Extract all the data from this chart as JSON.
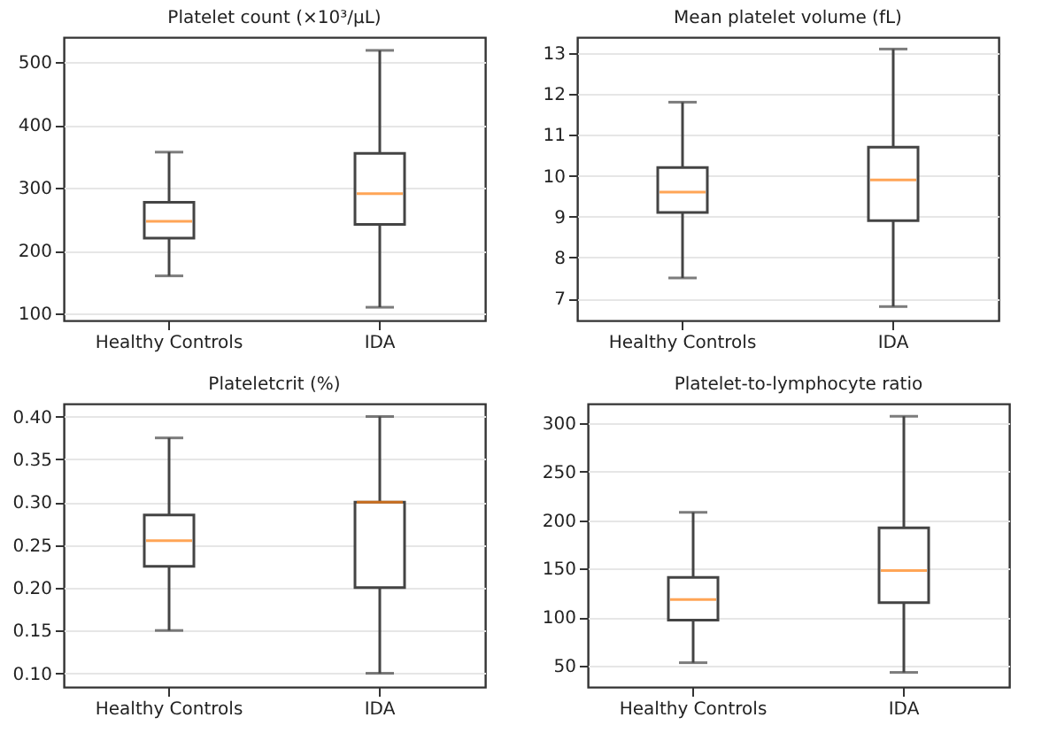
{
  "chart_data": [
    {
      "type": "box",
      "title": "Platelet count (×10³/μL)",
      "categories": [
        "Healthy Controls",
        "IDA"
      ],
      "ylim": [
        89,
        540
      ],
      "yticks": [
        100,
        200,
        300,
        400,
        500
      ],
      "grid": "y",
      "boxes": [
        {
          "low": 160,
          "q1": 220,
          "median": 247,
          "q3": 277,
          "high": 357
        },
        {
          "low": 110,
          "q1": 242,
          "median": 291,
          "q3": 355,
          "high": 519
        }
      ]
    },
    {
      "type": "box",
      "title": "Mean platelet volume (fL)",
      "categories": [
        "Healthy Controls",
        "IDA"
      ],
      "ylim": [
        6.46,
        13.39
      ],
      "yticks": [
        7,
        8,
        9,
        10,
        11,
        12,
        13
      ],
      "grid": "y",
      "boxes": [
        {
          "low": 7.5,
          "q1": 9.1,
          "median": 9.6,
          "q3": 10.2,
          "high": 11.8
        },
        {
          "low": 6.8,
          "q1": 8.9,
          "median": 9.9,
          "q3": 10.7,
          "high": 13.1
        }
      ]
    },
    {
      "type": "box",
      "title": "Plateletcrit (%)",
      "categories": [
        "Healthy Controls",
        "IDA"
      ],
      "ylim": [
        0.084,
        0.415
      ],
      "yticks": [
        {
          "value": 0.1,
          "label": "0.10"
        },
        {
          "value": 0.15,
          "label": "0.15"
        },
        {
          "value": 0.2,
          "label": "0.20"
        },
        {
          "value": 0.25,
          "label": "0.25"
        },
        {
          "value": 0.3,
          "label": "0.30"
        },
        {
          "value": 0.35,
          "label": "0.35"
        },
        {
          "value": 0.4,
          "label": "0.40"
        }
      ],
      "grid": "y",
      "boxes": [
        {
          "low": 0.15,
          "q1": 0.225,
          "median": 0.255,
          "q3": 0.285,
          "high": 0.375
        },
        {
          "low": 0.1,
          "q1": 0.2,
          "median": 0.3,
          "q3": 0.3,
          "high": 0.4
        }
      ]
    },
    {
      "type": "box",
      "title": "Platelet-to-lymphocyte ratio",
      "categories": [
        "Healthy Controls",
        "IDA"
      ],
      "ylim": [
        28,
        320
      ],
      "yticks": [
        50,
        100,
        150,
        200,
        250,
        300
      ],
      "grid": "y",
      "boxes": [
        {
          "low": 53,
          "q1": 97,
          "median": 118,
          "q3": 141,
          "high": 208
        },
        {
          "low": 43,
          "q1": 115,
          "median": 148,
          "q3": 192,
          "high": 307
        }
      ]
    }
  ]
}
